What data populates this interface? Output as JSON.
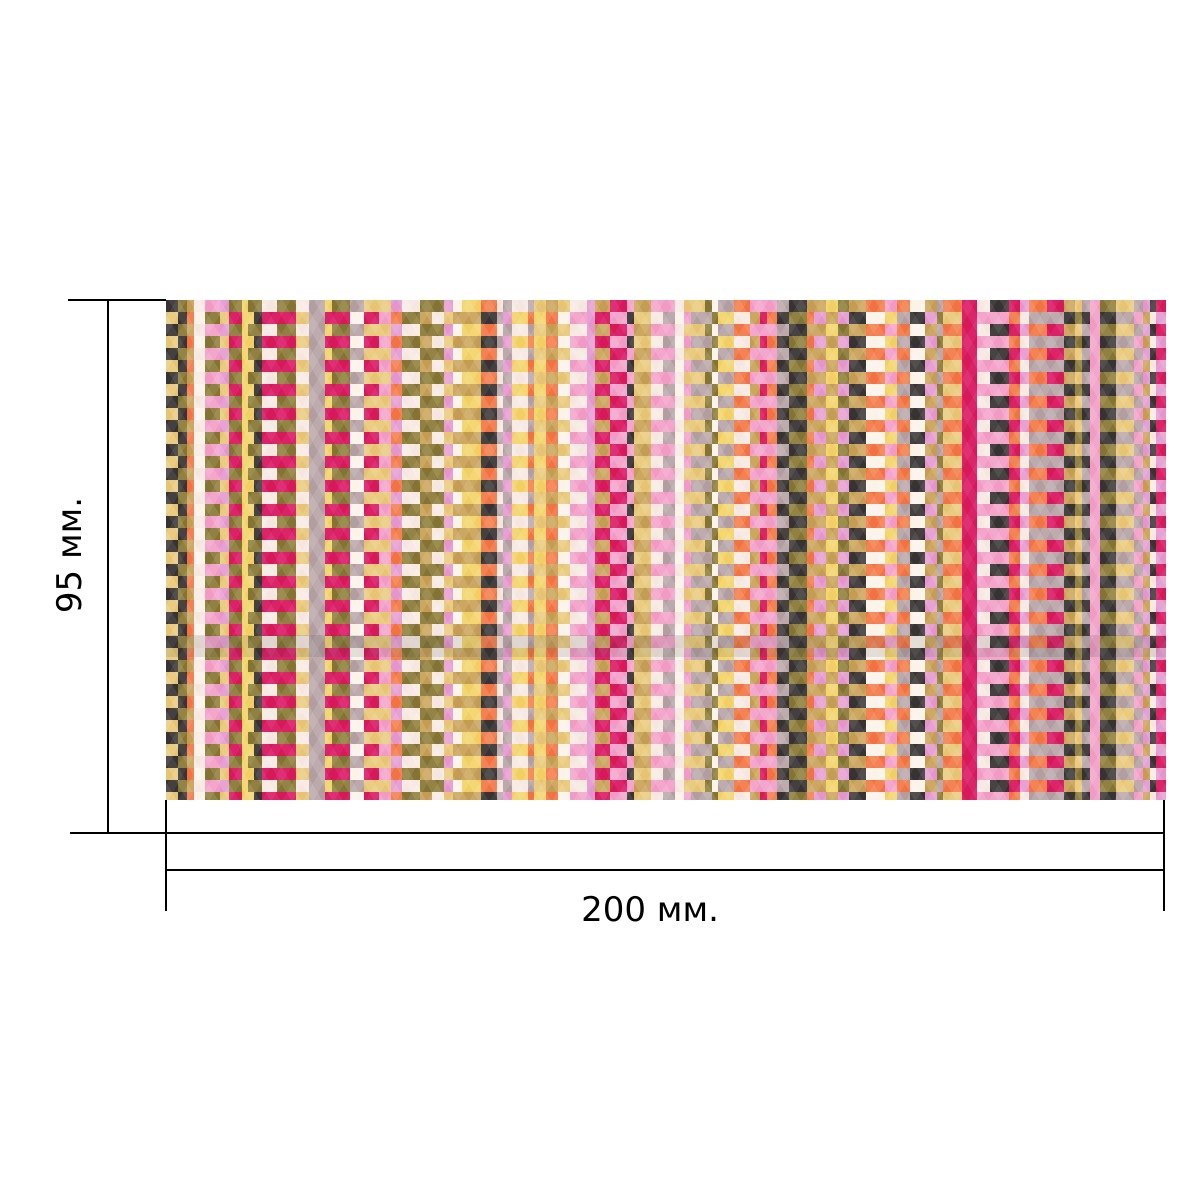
{
  "dimensions": {
    "width_label": "200 мм.",
    "height_label": "95 мм."
  },
  "pattern": {
    "palette": [
      "#f2a0c8",
      "#e8c97a",
      "#d81c5f",
      "#f6e9e2",
      "#b7a4a6",
      "#8a7a3a",
      "#3d3838",
      "#f27a4a",
      "#e59bd0",
      "#fbf3ea",
      "#c9a25a",
      "#f3d36b"
    ]
  }
}
